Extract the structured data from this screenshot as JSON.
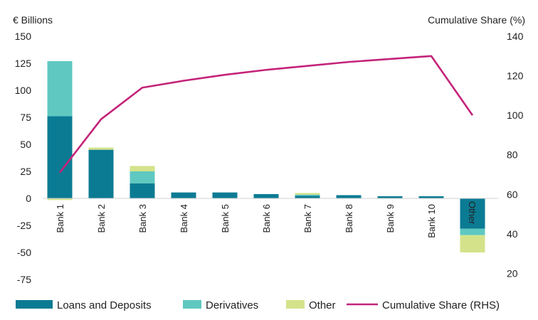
{
  "chart_data": {
    "type": "bar",
    "stacked": true,
    "y_left": {
      "label": "€ Billions",
      "ylim": [
        -75,
        150
      ],
      "ticks": [
        -75,
        -50,
        -25,
        0,
        25,
        50,
        75,
        100,
        125,
        150
      ]
    },
    "y_right": {
      "label": "Cumulative Share (%)",
      "ylim": [
        0,
        140
      ],
      "ticks": [
        20,
        40,
        60,
        80,
        100,
        120,
        140
      ]
    },
    "categories": [
      "Bank 1",
      "Bank 2",
      "Bank 3",
      "Bank 4",
      "Bank 5",
      "Bank 6",
      "Bank 7",
      "Bank 8",
      "Bank 9",
      "Bank 10",
      "Other"
    ],
    "series": [
      {
        "name": "Loans and Deposits",
        "kind": "bar",
        "color": "#0b7b93",
        "values": [
          76,
          45,
          14,
          5.5,
          5.5,
          4,
          2.5,
          3,
          2,
          2,
          -28
        ]
      },
      {
        "name": "Derivatives",
        "kind": "bar",
        "color": "#5fc8c1",
        "values": [
          51,
          0,
          11,
          0,
          0,
          0,
          1,
          0,
          0,
          0,
          -6
        ]
      },
      {
        "name": "Other",
        "kind": "bar",
        "color": "#d4e38a",
        "values": [
          -1.5,
          2,
          5,
          0,
          0,
          0,
          1.5,
          0,
          0,
          0,
          -16
        ]
      },
      {
        "name": "Cumulative Share (RHS)",
        "kind": "line",
        "axis": "right",
        "color": "#c4237a",
        "values": [
          71,
          98,
          114,
          117.5,
          120.5,
          123,
          125,
          127,
          128.5,
          130,
          100
        ]
      }
    ],
    "legend": "bottom",
    "grid": false
  }
}
